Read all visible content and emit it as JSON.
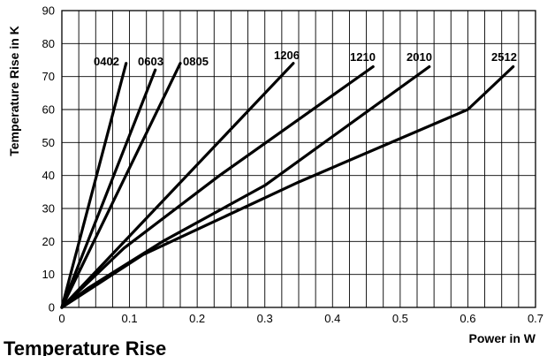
{
  "caption": "Temperature Rise",
  "chart_data": {
    "type": "line",
    "title": "",
    "xlabel": "Power in W",
    "ylabel": "Temperature Rise in K",
    "xlim": [
      0,
      0.7
    ],
    "ylim": [
      0,
      90
    ],
    "xticks": [
      "0",
      "0.1",
      "0.2",
      "0.3",
      "0.4",
      "0.5",
      "0.6",
      "0.7"
    ],
    "yticks": [
      "0",
      "10",
      "20",
      "30",
      "40",
      "50",
      "60",
      "70",
      "80",
      "90"
    ],
    "grid": true,
    "legend": "none",
    "series": [
      {
        "name": "0402",
        "x": [
          0,
          0.095
        ],
        "y": [
          0,
          74
        ]
      },
      {
        "name": "0603",
        "x": [
          0,
          0.138
        ],
        "y": [
          0,
          72
        ]
      },
      {
        "name": "0805",
        "x": [
          0,
          0.175
        ],
        "y": [
          0,
          74
        ]
      },
      {
        "name": "1206",
        "x": [
          0,
          0.342
        ],
        "y": [
          0,
          74
        ]
      },
      {
        "name": "1210",
        "x": [
          0,
          0.092,
          0.233,
          0.46
        ],
        "y": [
          0,
          18,
          40,
          73
        ]
      },
      {
        "name": "2010",
        "x": [
          0,
          0.04,
          0.149,
          0.3,
          0.543
        ],
        "y": [
          0,
          6,
          20,
          37,
          73
        ]
      },
      {
        "name": "2512",
        "x": [
          0,
          0.12,
          0.35,
          0.6,
          0.667
        ],
        "y": [
          0,
          16,
          38,
          60,
          73
        ]
      }
    ]
  }
}
